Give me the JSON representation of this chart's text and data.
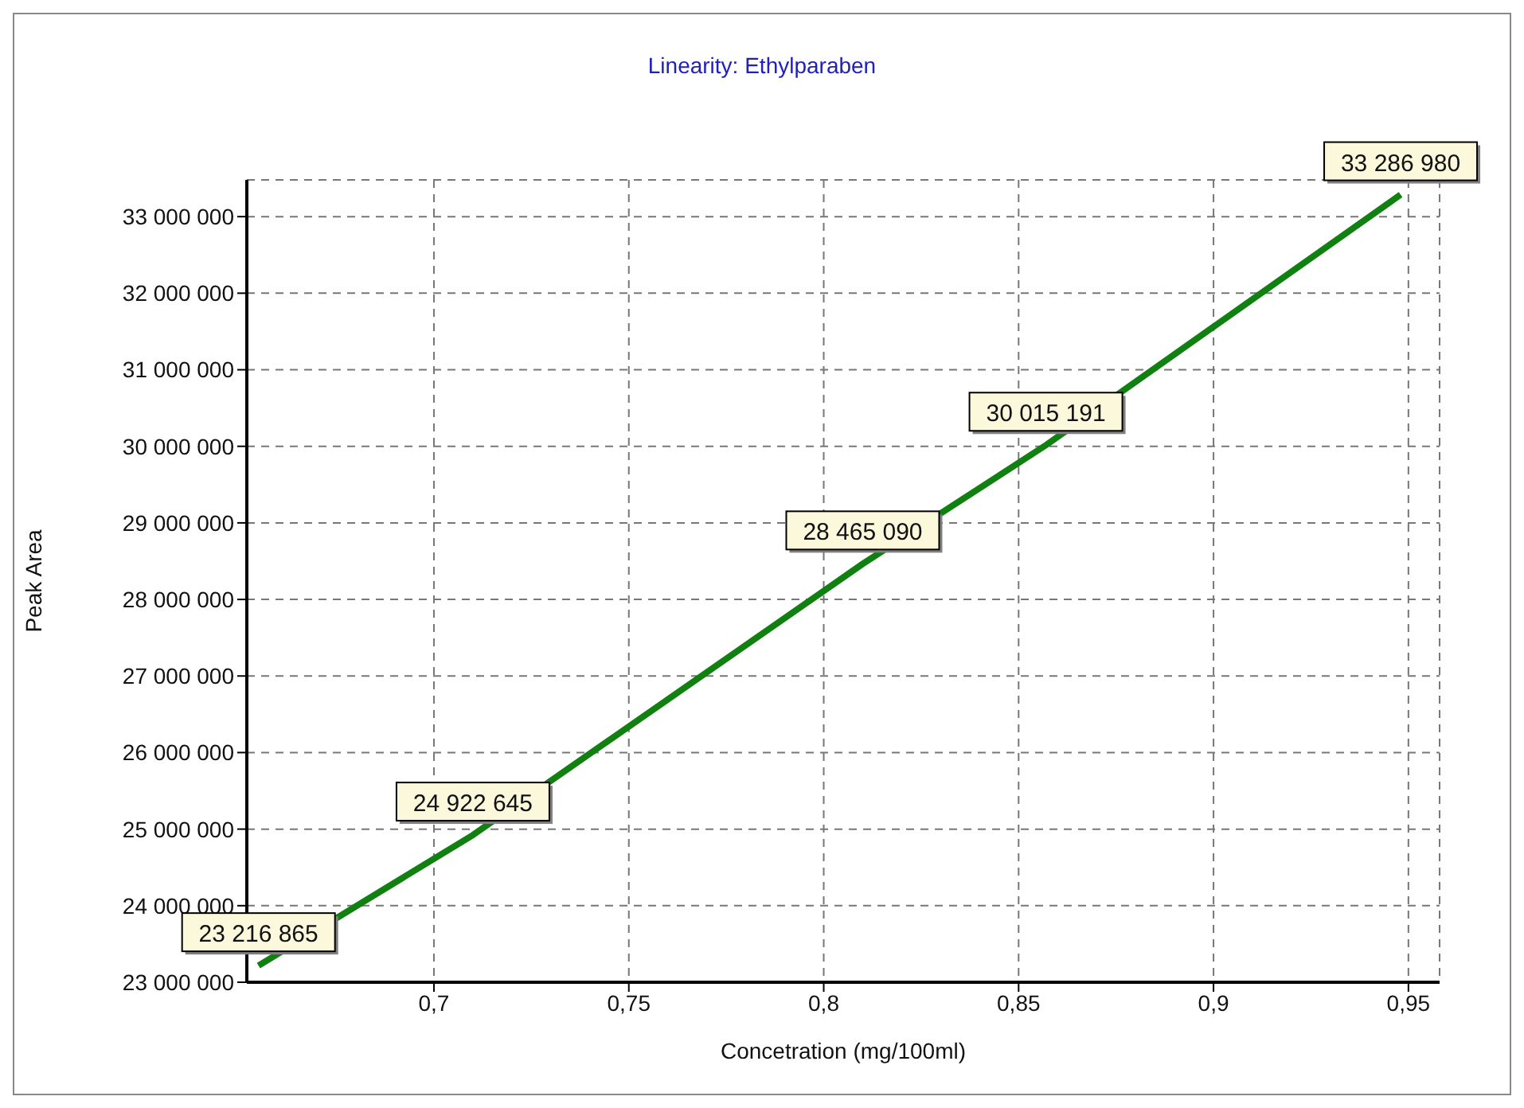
{
  "chart_data": {
    "type": "line",
    "title": "Linearity: Ethylparaben",
    "xlabel": "Concetration (mg/100ml)",
    "ylabel": "Peak Area",
    "x": [
      0.655,
      0.71,
      0.81,
      0.857,
      0.948
    ],
    "series": [
      {
        "color": "#108010",
        "values": [
          23216865,
          24922645,
          28465090,
          30015191,
          33286980
        ],
        "value_labels": [
          "23 216 865",
          "24 922 645",
          "28 465 090",
          "30 015 191",
          "33 286 980"
        ]
      }
    ],
    "xlim": [
      0.652,
      0.958
    ],
    "xticks": [
      {
        "value": 0.7,
        "label": "0,7"
      },
      {
        "value": 0.75,
        "label": "0,75"
      },
      {
        "value": 0.8,
        "label": "0,8"
      },
      {
        "value": 0.85,
        "label": "0,85"
      },
      {
        "value": 0.9,
        "label": "0,9"
      },
      {
        "value": 0.95,
        "label": "0,95"
      }
    ],
    "ylim": [
      23000000,
      33480000
    ],
    "yticks": [
      {
        "value": 23000000,
        "label": "23 000 000"
      },
      {
        "value": 24000000,
        "label": "24 000 000"
      },
      {
        "value": 25000000,
        "label": "25 000 000"
      },
      {
        "value": 26000000,
        "label": "26 000 000"
      },
      {
        "value": 27000000,
        "label": "27 000 000"
      },
      {
        "value": 28000000,
        "label": "28 000 000"
      },
      {
        "value": 29000000,
        "label": "29 000 000"
      },
      {
        "value": 30000000,
        "label": "30 000 000"
      },
      {
        "value": 31000000,
        "label": "31 000 000"
      },
      {
        "value": 32000000,
        "label": "32 000 000"
      },
      {
        "value": 33000000,
        "label": "33 000 000"
      }
    ],
    "grid": true
  }
}
